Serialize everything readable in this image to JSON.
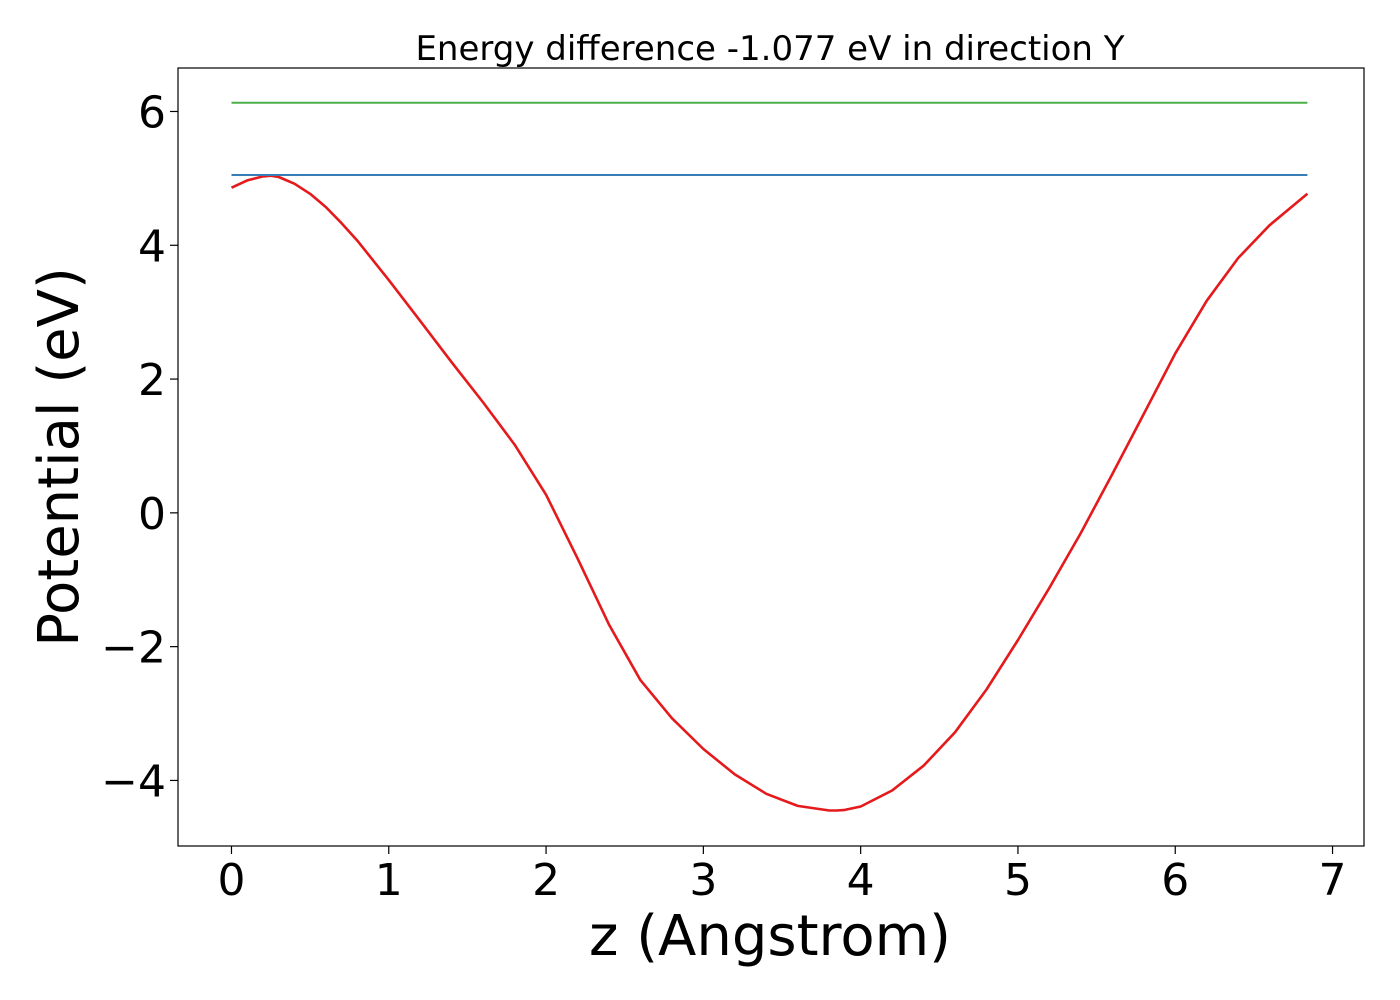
{
  "chart_data": {
    "type": "line",
    "title": "Energy difference -1.077 eV in direction Y",
    "xlabel": "z (Angstrom)",
    "ylabel": "Potential (eV)",
    "xlim": [
      -0.34,
      7.2
    ],
    "ylim": [
      -4.98,
      6.65
    ],
    "xticks": [
      0,
      1,
      2,
      3,
      4,
      5,
      6,
      7
    ],
    "xtick_labels": [
      "0",
      "1",
      "2",
      "3",
      "4",
      "5",
      "6",
      "7"
    ],
    "yticks": [
      -4,
      -2,
      0,
      2,
      4,
      6
    ],
    "ytick_labels": [
      "−4",
      "−2",
      "0",
      "2",
      "4",
      "6"
    ],
    "grid": false,
    "series": [
      {
        "color": "#e41a1c",
        "x": [
          0.0,
          0.1,
          0.2,
          0.25,
          0.3,
          0.4,
          0.5,
          0.6,
          0.7,
          0.8,
          1.0,
          1.2,
          1.4,
          1.6,
          1.8,
          2.0,
          2.2,
          2.4,
          2.6,
          2.8,
          3.0,
          3.2,
          3.4,
          3.6,
          3.8,
          3.85,
          3.9,
          4.0,
          4.2,
          4.4,
          4.6,
          4.8,
          5.0,
          5.2,
          5.4,
          5.6,
          5.8,
          6.0,
          6.2,
          6.4,
          6.6,
          6.84
        ],
        "values": [
          4.86,
          4.97,
          5.03,
          5.04,
          5.02,
          4.92,
          4.77,
          4.57,
          4.33,
          4.07,
          3.48,
          2.87,
          2.25,
          1.65,
          1.02,
          0.27,
          -0.68,
          -1.67,
          -2.5,
          -3.07,
          -3.53,
          -3.91,
          -4.2,
          -4.38,
          -4.45,
          -4.45,
          -4.44,
          -4.39,
          -4.15,
          -3.78,
          -3.28,
          -2.64,
          -1.9,
          -1.12,
          -0.3,
          0.58,
          1.48,
          2.38,
          3.17,
          3.81,
          4.3,
          4.77
        ]
      },
      {
        "color": "#377eb8",
        "x": [
          0.0,
          6.84
        ],
        "values": [
          5.05,
          5.05
        ]
      },
      {
        "color": "#4daf4a",
        "x": [
          0.0,
          6.84
        ],
        "values": [
          6.13,
          6.13
        ]
      }
    ]
  }
}
